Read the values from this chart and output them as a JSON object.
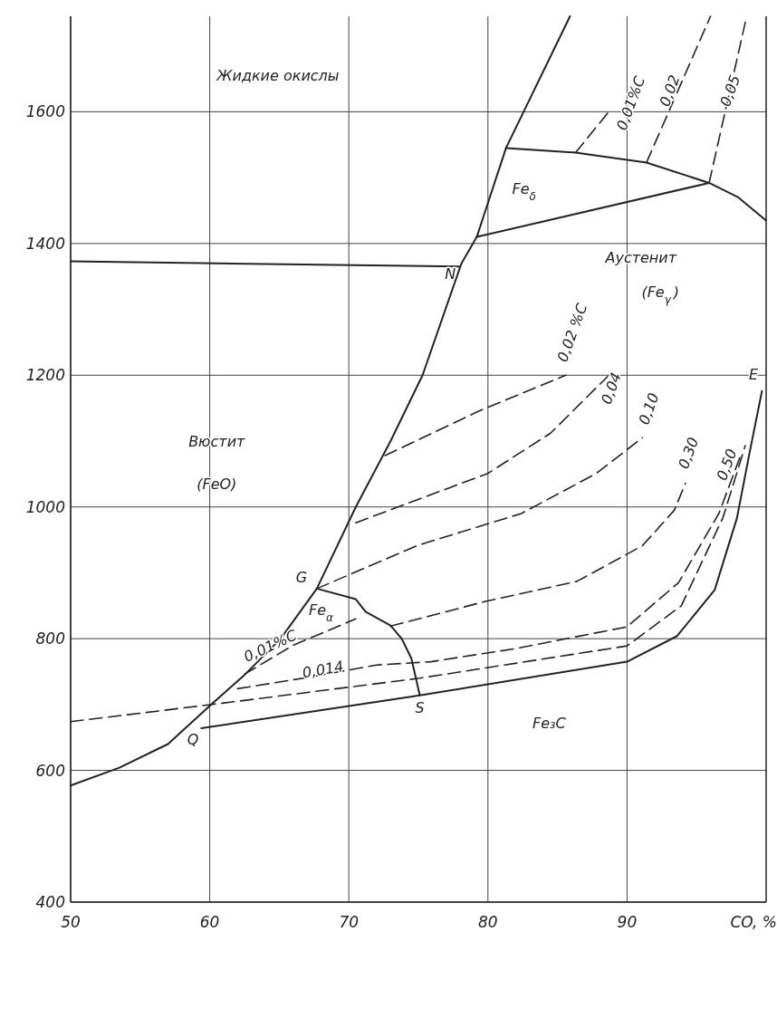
{
  "chart_data": {
    "type": "line",
    "xlabel": "CO, %",
    "xlim": [
      50,
      100
    ],
    "ylim": [
      400,
      1745
    ],
    "xticks": [
      50,
      60,
      70,
      80,
      90
    ],
    "yticks": [
      400,
      600,
      800,
      1000,
      1200,
      1400,
      1600
    ],
    "grid": true,
    "marker": "none",
    "series": [
      {
        "color": "#222222",
        "line_style": "solid",
        "x": [
          50,
          53.5,
          57,
          60,
          62.5,
          65.1,
          67.7,
          70.5,
          73,
          75.3,
          78.1,
          79.2,
          81.3,
          85.9
        ],
        "values": [
          577,
          604,
          640,
          698,
          745,
          800,
          876,
          1000,
          1100,
          1200,
          1370,
          1410,
          1545,
          1745
        ]
      },
      {
        "color": "#222222",
        "line_style": "solid",
        "x": [
          50,
          78
        ],
        "values": [
          1373,
          1365
        ]
      },
      {
        "color": "#222222",
        "line_style": "solid",
        "x": [
          81.3,
          86.3,
          91.4,
          95.9,
          98,
          100
        ],
        "values": [
          1545,
          1538,
          1523,
          1492,
          1470,
          1435
        ]
      },
      {
        "color": "#222222",
        "line_style": "solid",
        "x": [
          79.2,
          95.9
        ],
        "values": [
          1410,
          1492
        ]
      },
      {
        "color": "#222222",
        "line_style": "solid",
        "x": [
          67.7,
          70.5,
          71.2,
          73,
          73.8,
          74.5,
          75.1
        ],
        "values": [
          876,
          860,
          841,
          820,
          800,
          770,
          714
        ]
      },
      {
        "color": "#222222",
        "line_style": "solid",
        "x": [
          59.4,
          75.1,
          90,
          93.6,
          96.3,
          97.9,
          98.9,
          99.7
        ],
        "values": [
          664,
          714,
          765,
          804,
          874,
          983,
          1092,
          1176
        ]
      },
      {
        "color": "#222222",
        "line_style": "dashed",
        "x": [
          50,
          60.9,
          75.1,
          90,
          93.9,
          96.9,
          98.5
        ],
        "values": [
          674,
          702,
          740,
          789,
          850,
          984,
          1093
        ]
      },
      {
        "color": "#222222",
        "line_style": "dashed",
        "x": [
          62.5,
          66,
          70.5
        ],
        "values": [
          746,
          790,
          830
        ]
      },
      {
        "color": "#222222",
        "line_style": "dashed",
        "x": [
          73,
          79.9,
          86.4,
          91.1,
          93.4,
          94.2
        ],
        "values": [
          819,
          857,
          887,
          941,
          995,
          1036
        ]
      },
      {
        "color": "#222222",
        "line_style": "dashed",
        "x": [
          62,
          67,
          72,
          75.9,
          82,
          90,
          93.7,
          96.6,
          98.2
        ],
        "values": [
          724,
          741,
          760,
          765,
          785,
          818,
          885,
          990,
          1080
        ]
      },
      {
        "color": "#222222",
        "line_style": "dashed",
        "x": [
          67.7,
          75,
          82.4,
          87.8,
          91.1
        ],
        "values": [
          876,
          942,
          990,
          1051,
          1105
        ]
      },
      {
        "color": "#222222",
        "line_style": "dashed",
        "x": [
          70.5,
          80,
          84.5,
          88.6
        ],
        "values": [
          976,
          1051,
          1112,
          1198
        ]
      },
      {
        "color": "#222222",
        "line_style": "dashed",
        "x": [
          72.6,
          79.4,
          85.6
        ],
        "values": [
          1078,
          1146,
          1200
        ]
      },
      {
        "color": "#222222",
        "line_style": "dashed",
        "x": [
          86.3,
          88.8
        ],
        "values": [
          1538,
          1603
        ]
      },
      {
        "color": "#222222",
        "line_style": "dashed",
        "x": [
          91.4,
          96
        ],
        "values": [
          1523,
          1745
        ]
      },
      {
        "color": "#222222",
        "line_style": "dashed",
        "x": [
          95.9,
          98.6
        ],
        "values": [
          1492,
          1745
        ]
      }
    ],
    "annotations": [
      "Жидкие окислы",
      "Fe$_{δ}$",
      "Аустенит",
      "(Fe$_{γ}$)",
      "Вюстит",
      "(FeO)",
      "N",
      "G",
      "Fe$_{α}$",
      "0,01%C",
      "0,014",
      "S",
      "Q",
      "Fe₃C",
      "E",
      "0,02 %C",
      "0,04",
      "0,10",
      "0,30",
      "0,50",
      "0,01%C",
      "0,02",
      "0,05"
    ]
  }
}
